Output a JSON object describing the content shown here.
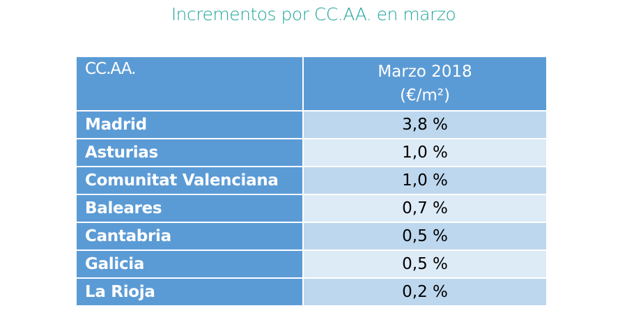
{
  "title": "Incrementos por CC.AA. en marzo",
  "table": {
    "headers": [
      "CC.AA.",
      "Marzo 2018",
      "(€/m²)"
    ],
    "rows": [
      {
        "name": "Madrid",
        "value": "3,8 %"
      },
      {
        "name": "Asturias",
        "value": "1,0 %"
      },
      {
        "name": "Comunitat Valenciana",
        "value": "1,0 %"
      },
      {
        "name": "Baleares",
        "value": "0,7 %"
      },
      {
        "name": "Cantabria",
        "value": "0,5 %"
      },
      {
        "name": "Galicia",
        "value": "0,5 %"
      },
      {
        "name": "La Rioja",
        "value": "0,2 %"
      }
    ]
  },
  "colors": {
    "title": "#1fa59b",
    "header": "#5b9bd5",
    "row_dark": "#bdd7ee",
    "row_light": "#ddebf7"
  }
}
